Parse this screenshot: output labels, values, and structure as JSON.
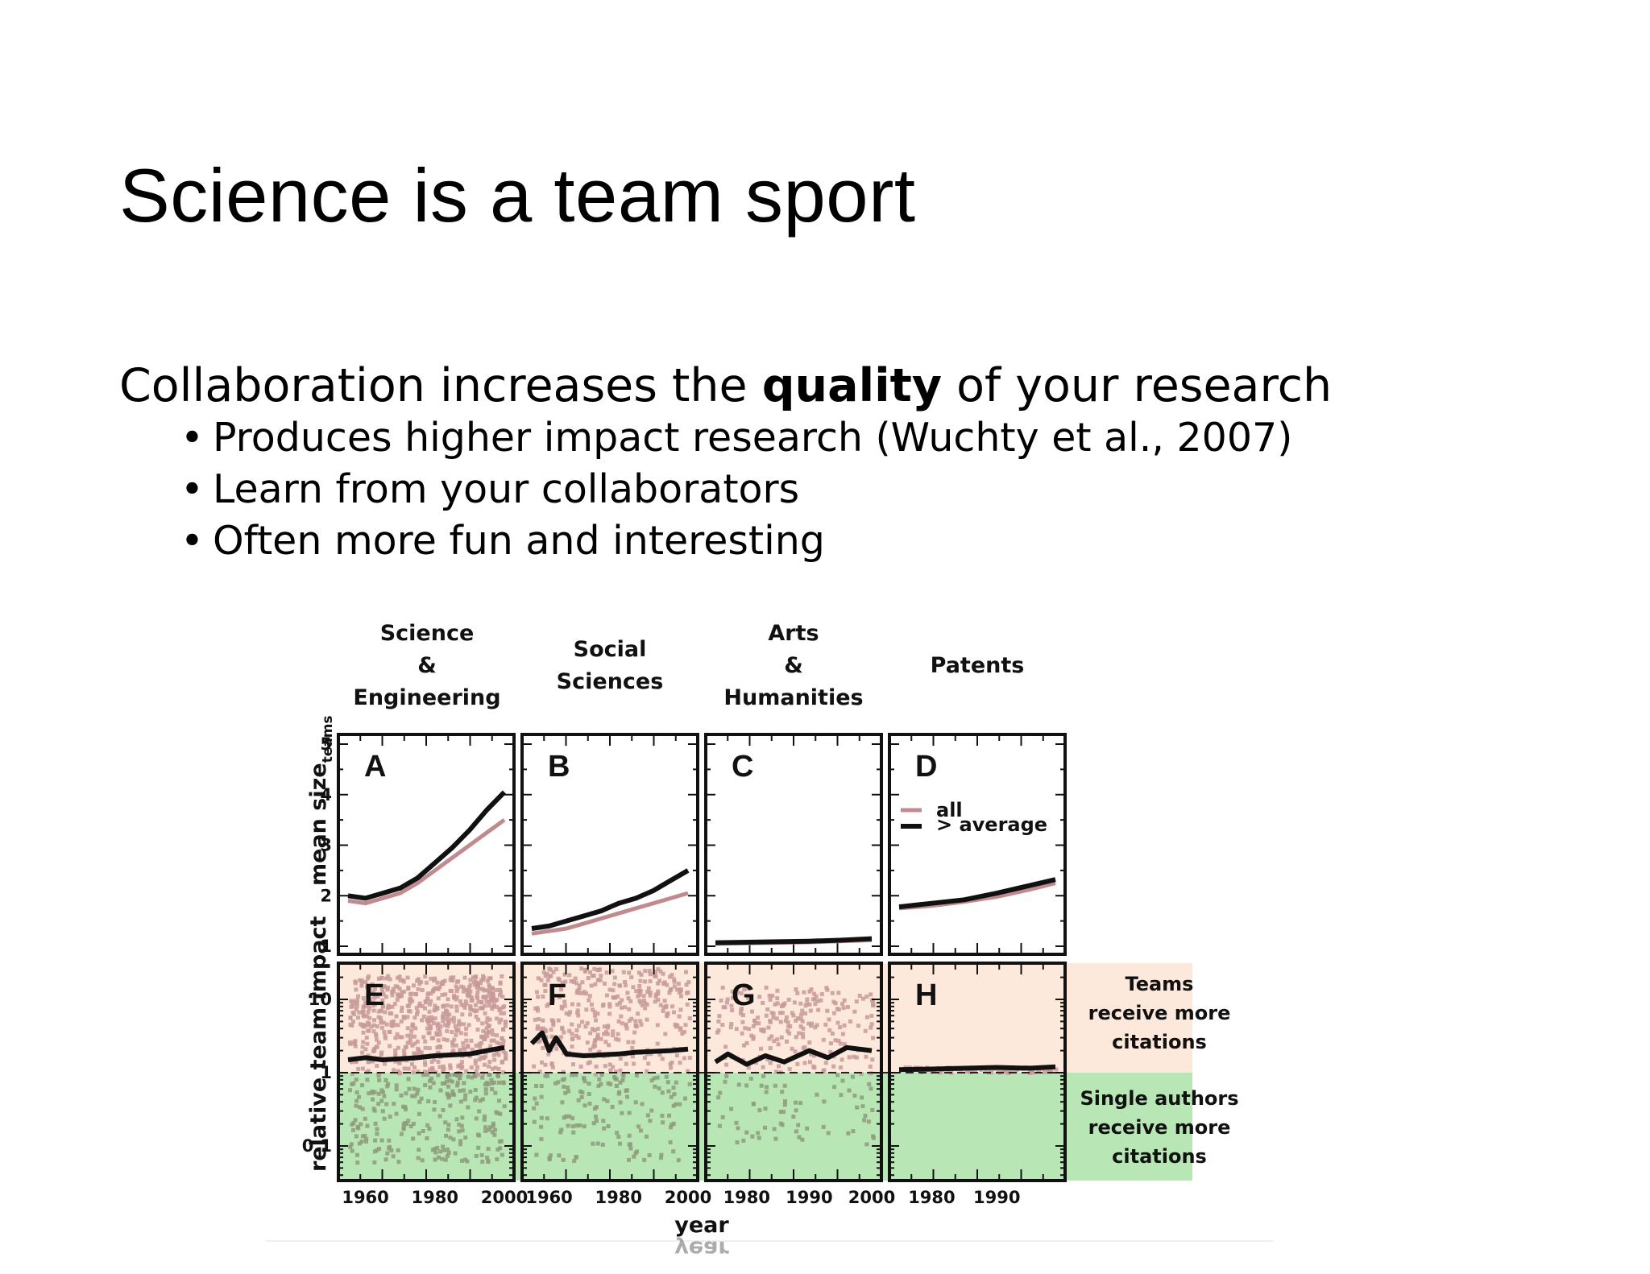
{
  "slide": {
    "title": "Science is a team sport",
    "lead_before": "Collaboration increases the ",
    "lead_bold": "quality",
    "lead_after": " of your research",
    "bullets": [
      "Produces higher impact research (Wuchty et al., 2007)",
      "Learn from your collaborators",
      "Often more fun and interesting"
    ]
  },
  "figure": {
    "columns": [
      {
        "title_lines": [
          "Science",
          "&",
          "Engineering"
        ]
      },
      {
        "title_lines": [
          "Social",
          "Sciences"
        ]
      },
      {
        "title_lines": [
          "Arts",
          "&",
          "Humanities"
        ]
      },
      {
        "title_lines": [
          "Patents"
        ]
      }
    ],
    "top_y_label": "mean size",
    "top_y_subscript": "teams",
    "bottom_y_label": "relative team impact",
    "x_label": "year",
    "x_label_reflection": "year",
    "top_panel_letters": [
      "A",
      "B",
      "C",
      "D"
    ],
    "bottom_panel_letters": [
      "E",
      "F",
      "G",
      "H"
    ],
    "top_y_ticks": [
      "1",
      "2",
      "3",
      "4",
      "5"
    ],
    "bottom_y_ticks": [
      "10",
      "1",
      "0.1"
    ],
    "x_tick_labels": [
      [
        "1960",
        "1980",
        "2000"
      ],
      [
        "1960",
        "1980",
        "2000"
      ],
      [
        "1980",
        "1990",
        "2000"
      ],
      [
        "1980",
        "1990"
      ]
    ],
    "legend": [
      {
        "label": "all",
        "color": "#c08a8f"
      },
      {
        "label": "> average",
        "color": "#111111"
      }
    ],
    "side_notes": {
      "upper": [
        "Teams",
        "receive more",
        "citations"
      ],
      "lower": [
        "Single authors",
        "receive more",
        "citations"
      ]
    },
    "colors": {
      "upper_band": "#fde9dc",
      "lower_band": "#b8e6b5",
      "upper_dots": "#c79a9a",
      "lower_dots": "#8e9a7c",
      "all_line": "#c08a8f",
      "avg_line": "#111111"
    }
  },
  "chart_data": [
    {
      "type": "line",
      "panel": "A",
      "title": "Science & Engineering",
      "ylabel": "mean size teams",
      "ylim": [
        1,
        5
      ],
      "xlim": [
        1955,
        2000
      ],
      "series": [
        {
          "name": "all",
          "x": [
            1955,
            1960,
            1965,
            1970,
            1975,
            1980,
            1985,
            1990,
            1995,
            2000
          ],
          "values": [
            1.9,
            1.85,
            1.95,
            2.05,
            2.25,
            2.5,
            2.75,
            3.0,
            3.25,
            3.5
          ]
        },
        {
          "name": "> average",
          "x": [
            1955,
            1960,
            1965,
            1970,
            1975,
            1980,
            1985,
            1990,
            1995,
            2000
          ],
          "values": [
            2.0,
            1.95,
            2.05,
            2.15,
            2.35,
            2.65,
            2.95,
            3.3,
            3.7,
            4.05
          ]
        }
      ]
    },
    {
      "type": "line",
      "panel": "B",
      "title": "Social Sciences",
      "ylim": [
        1,
        5
      ],
      "xlim": [
        1955,
        2000
      ],
      "series": [
        {
          "name": "all",
          "x": [
            1955,
            1960,
            1965,
            1970,
            1975,
            1980,
            1985,
            1990,
            1995,
            2000
          ],
          "values": [
            1.25,
            1.3,
            1.35,
            1.45,
            1.55,
            1.65,
            1.75,
            1.85,
            1.95,
            2.05
          ]
        },
        {
          "name": "> average",
          "x": [
            1955,
            1960,
            1965,
            1970,
            1975,
            1980,
            1985,
            1990,
            1995,
            2000
          ],
          "values": [
            1.35,
            1.4,
            1.5,
            1.6,
            1.7,
            1.85,
            1.95,
            2.1,
            2.3,
            2.5
          ]
        }
      ]
    },
    {
      "type": "line",
      "panel": "C",
      "title": "Arts & Humanities",
      "ylim": [
        1,
        5
      ],
      "xlim": [
        1975,
        2000
      ],
      "series": [
        {
          "name": "all",
          "x": [
            1975,
            1980,
            1985,
            1990,
            1995,
            2000
          ],
          "values": [
            1.05,
            1.06,
            1.07,
            1.08,
            1.1,
            1.12
          ]
        },
        {
          "name": "> average",
          "x": [
            1975,
            1980,
            1985,
            1990,
            1995,
            2000
          ],
          "values": [
            1.07,
            1.08,
            1.09,
            1.1,
            1.12,
            1.15
          ]
        }
      ]
    },
    {
      "type": "line",
      "panel": "D",
      "title": "Patents",
      "ylim": [
        1,
        5
      ],
      "xlim": [
        1975,
        1999
      ],
      "series": [
        {
          "name": "all",
          "x": [
            1975,
            1980,
            1985,
            1990,
            1995,
            1999
          ],
          "values": [
            1.75,
            1.8,
            1.88,
            1.98,
            2.12,
            2.25
          ]
        },
        {
          "name": "> average",
          "x": [
            1975,
            1980,
            1985,
            1990,
            1995,
            1999
          ],
          "values": [
            1.78,
            1.85,
            1.92,
            2.05,
            2.2,
            2.32
          ]
        }
      ]
    },
    {
      "type": "scatter",
      "panel": "E",
      "ylabel": "relative team impact",
      "ylim": [
        0.04,
        20
      ],
      "xlim": [
        1955,
        2000
      ],
      "series": [
        {
          "name": "> average",
          "x": [
            1955,
            1960,
            1965,
            1970,
            1975,
            1980,
            1985,
            1990,
            1995,
            2000
          ],
          "values": [
            1.5,
            1.6,
            1.5,
            1.55,
            1.6,
            1.7,
            1.75,
            1.8,
            2.0,
            2.2
          ]
        }
      ]
    },
    {
      "type": "scatter",
      "panel": "F",
      "ylim": [
        0.04,
        20
      ],
      "xlim": [
        1955,
        2000
      ],
      "series": [
        {
          "name": "> average",
          "x": [
            1955,
            1958,
            1960,
            1962,
            1965,
            1970,
            1975,
            1980,
            1985,
            1990,
            1995,
            2000
          ],
          "values": [
            2.5,
            3.5,
            2.0,
            3.0,
            1.8,
            1.7,
            1.75,
            1.8,
            1.9,
            1.95,
            2.0,
            2.1
          ]
        }
      ]
    },
    {
      "type": "scatter",
      "panel": "G",
      "ylim": [
        0.04,
        20
      ],
      "xlim": [
        1975,
        2000
      ],
      "series": [
        {
          "name": "> average",
          "x": [
            1975,
            1977,
            1980,
            1983,
            1986,
            1990,
            1993,
            1996,
            2000
          ],
          "values": [
            1.4,
            1.8,
            1.3,
            1.7,
            1.4,
            2.0,
            1.6,
            2.2,
            2.0
          ]
        }
      ]
    },
    {
      "type": "scatter",
      "panel": "H",
      "ylim": [
        0.04,
        20
      ],
      "xlim": [
        1975,
        1999
      ],
      "series": [
        {
          "name": "> average",
          "x": [
            1975,
            1980,
            1985,
            1990,
            1995,
            1999
          ],
          "values": [
            1.1,
            1.12,
            1.15,
            1.18,
            1.15,
            1.2
          ]
        }
      ]
    }
  ]
}
